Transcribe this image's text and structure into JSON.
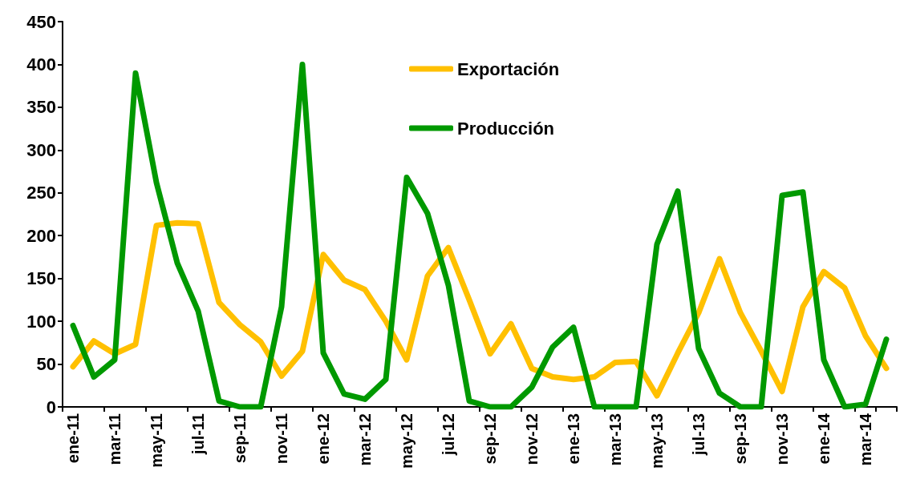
{
  "chart_data": {
    "type": "line",
    "categories": [
      "ene-11",
      null,
      "mar-11",
      null,
      "may-11",
      null,
      "jul-11",
      null,
      "sep-11",
      null,
      "nov-11",
      null,
      "ene-12",
      null,
      "mar-12",
      null,
      "may-12",
      null,
      "jul-12",
      null,
      "sep-12",
      null,
      "nov-12",
      null,
      "ene-13",
      null,
      "mar-13",
      null,
      "may-13",
      null,
      "jul-13",
      null,
      "sep-13",
      null,
      "nov-13",
      null,
      "ene-14",
      null,
      "mar-14",
      null
    ],
    "series": [
      {
        "name": "Exportación",
        "color": "#ffc000",
        "values": [
          47,
          77,
          62,
          73,
          212,
          215,
          214,
          122,
          96,
          76,
          36,
          65,
          178,
          148,
          137,
          100,
          55,
          153,
          186,
          125,
          62,
          97,
          45,
          35,
          32,
          35,
          52,
          53,
          13,
          63,
          110,
          173,
          110,
          65,
          18,
          117,
          158,
          139,
          83,
          45
        ]
      },
      {
        "name": "Producción",
        "color": "#009900",
        "values": [
          95,
          35,
          55,
          390,
          262,
          168,
          112,
          7,
          0,
          0,
          117,
          400,
          63,
          15,
          9,
          32,
          268,
          226,
          142,
          7,
          0,
          0,
          23,
          70,
          93,
          0,
          0,
          0,
          190,
          252,
          68,
          16,
          0,
          0,
          247,
          251,
          55,
          0,
          3,
          79
        ]
      }
    ],
    "ylim": [
      0,
      450
    ],
    "yticks": [
      0,
      50,
      100,
      150,
      200,
      250,
      300,
      350,
      400,
      450
    ],
    "grid": false,
    "legend": "top",
    "marker": "none",
    "line_style": "solid"
  }
}
